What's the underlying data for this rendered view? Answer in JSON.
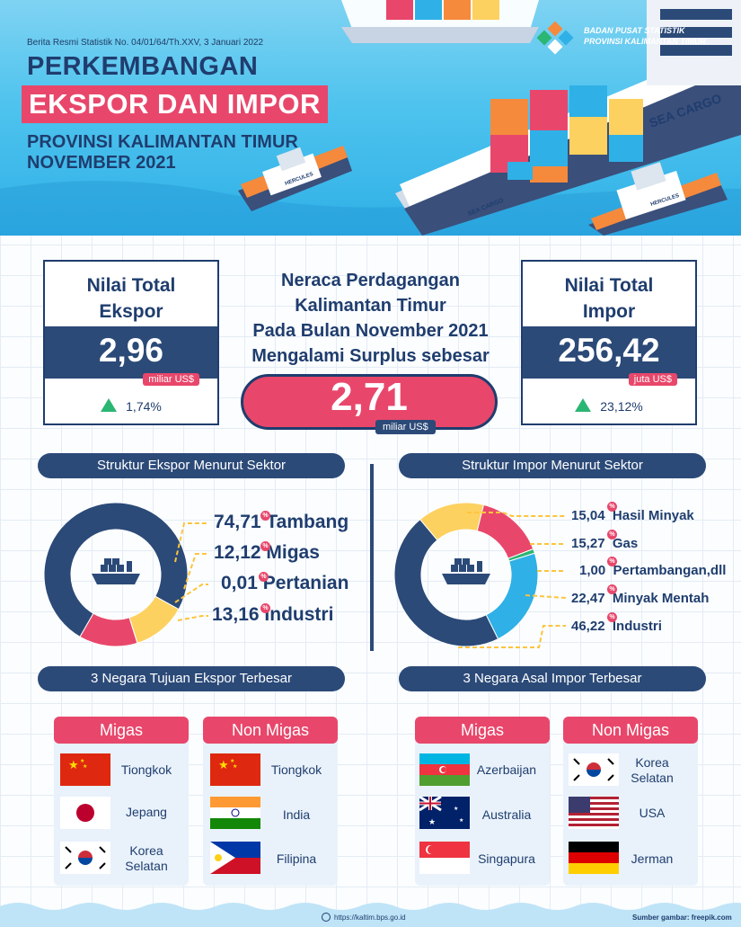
{
  "header": {
    "release": "Berita Resmi Statistik No. 04/01/64/Th.XXV, 3 Januari 2022",
    "title_line1": "PERKEMBANGAN",
    "title_line2": "EKSPOR DAN IMPOR",
    "subtitle_line1": "PROVINSI KALIMANTAN TIMUR",
    "subtitle_line2": "NOVEMBER 2021",
    "agency_line1": "BADAN PUSAT STATISTIK",
    "agency_line2": "PROVINSI KALIMANTAN TIMUR",
    "ship_label": "SEA CARGO",
    "ship_label_small": "SEA CARGO",
    "tug_label": "HERCULES"
  },
  "ekspor": {
    "title_line1": "Nilai Total",
    "title_line2": "Ekspor",
    "value": "2,96",
    "unit": "miliar US$",
    "change": "1,74%"
  },
  "neraca": {
    "line1": "Neraca Perdagangan",
    "line2": "Kalimantan Timur",
    "line3": "Pada Bulan November 2021",
    "line4": "Mengalami Surplus sebesar",
    "value": "2,71",
    "unit": "miliar US$"
  },
  "impor": {
    "title_line1": "Nilai Total",
    "title_line2": "Impor",
    "value": "256,42",
    "unit": "juta US$",
    "change": "23,12%"
  },
  "struktur_ekspor": {
    "title": "Struktur Ekspor Menurut Sektor",
    "items": [
      {
        "value": "74,71",
        "label": "Tambang"
      },
      {
        "value": "12,12",
        "label": "Migas"
      },
      {
        "value": "0,01",
        "label": "Pertanian"
      },
      {
        "value": "13,16",
        "label": "Industri"
      }
    ]
  },
  "struktur_impor": {
    "title": "Struktur Impor Menurut Sektor",
    "items": [
      {
        "value": "15,04",
        "label": "Hasil Minyak"
      },
      {
        "value": "15,27",
        "label": "Gas"
      },
      {
        "value": "1,00",
        "label": "Pertambangan,dll"
      },
      {
        "value": "22,47",
        "label": "Minyak Mentah"
      },
      {
        "value": "46,22",
        "label": "Industri"
      }
    ]
  },
  "pct_symbol": "%",
  "chart_data": [
    {
      "type": "pie",
      "categories": [
        "Tambang",
        "Migas",
        "Pertanian",
        "Industri"
      ],
      "values": [
        74.71,
        12.12,
        0.01,
        13.16
      ],
      "colors": [
        "#2b4a78",
        "#fdd160",
        "#2fb0e6",
        "#e8476b"
      ],
      "title": "Struktur Ekspor Menurut Sektor",
      "unit": "%"
    },
    {
      "type": "pie",
      "categories": [
        "Hasil Minyak",
        "Gas",
        "Pertambangan,dll",
        "Minyak Mentah",
        "Industri"
      ],
      "values": [
        15.04,
        15.27,
        1.0,
        22.47,
        46.22
      ],
      "colors": [
        "#fdd160",
        "#e8476b",
        "#2bb673",
        "#2fb0e6",
        "#2b4a78"
      ],
      "title": "Struktur Impor Menurut Sektor",
      "unit": "%"
    }
  ],
  "tujuan_ekspor": {
    "title": "3 Negara Tujuan Ekspor Terbesar",
    "migas_label": "Migas",
    "nonmigas_label": "Non Migas",
    "migas": [
      "Tiongkok",
      "Jepang",
      "Korea Selatan"
    ],
    "nonmigas": [
      "Tiongkok",
      "India",
      "Filipina"
    ]
  },
  "asal_impor": {
    "title": "3 Negara Asal Impor Terbesar",
    "migas_label": "Migas",
    "nonmigas_label": "Non Migas",
    "migas": [
      "Azerbaijan",
      "Australia",
      "Singapura"
    ],
    "nonmigas": [
      "Korea Selatan",
      "USA",
      "Jerman"
    ]
  },
  "footer": {
    "url": "https://kaltim.bps.go.id",
    "source": "Sumber gambar: freepik.com"
  }
}
